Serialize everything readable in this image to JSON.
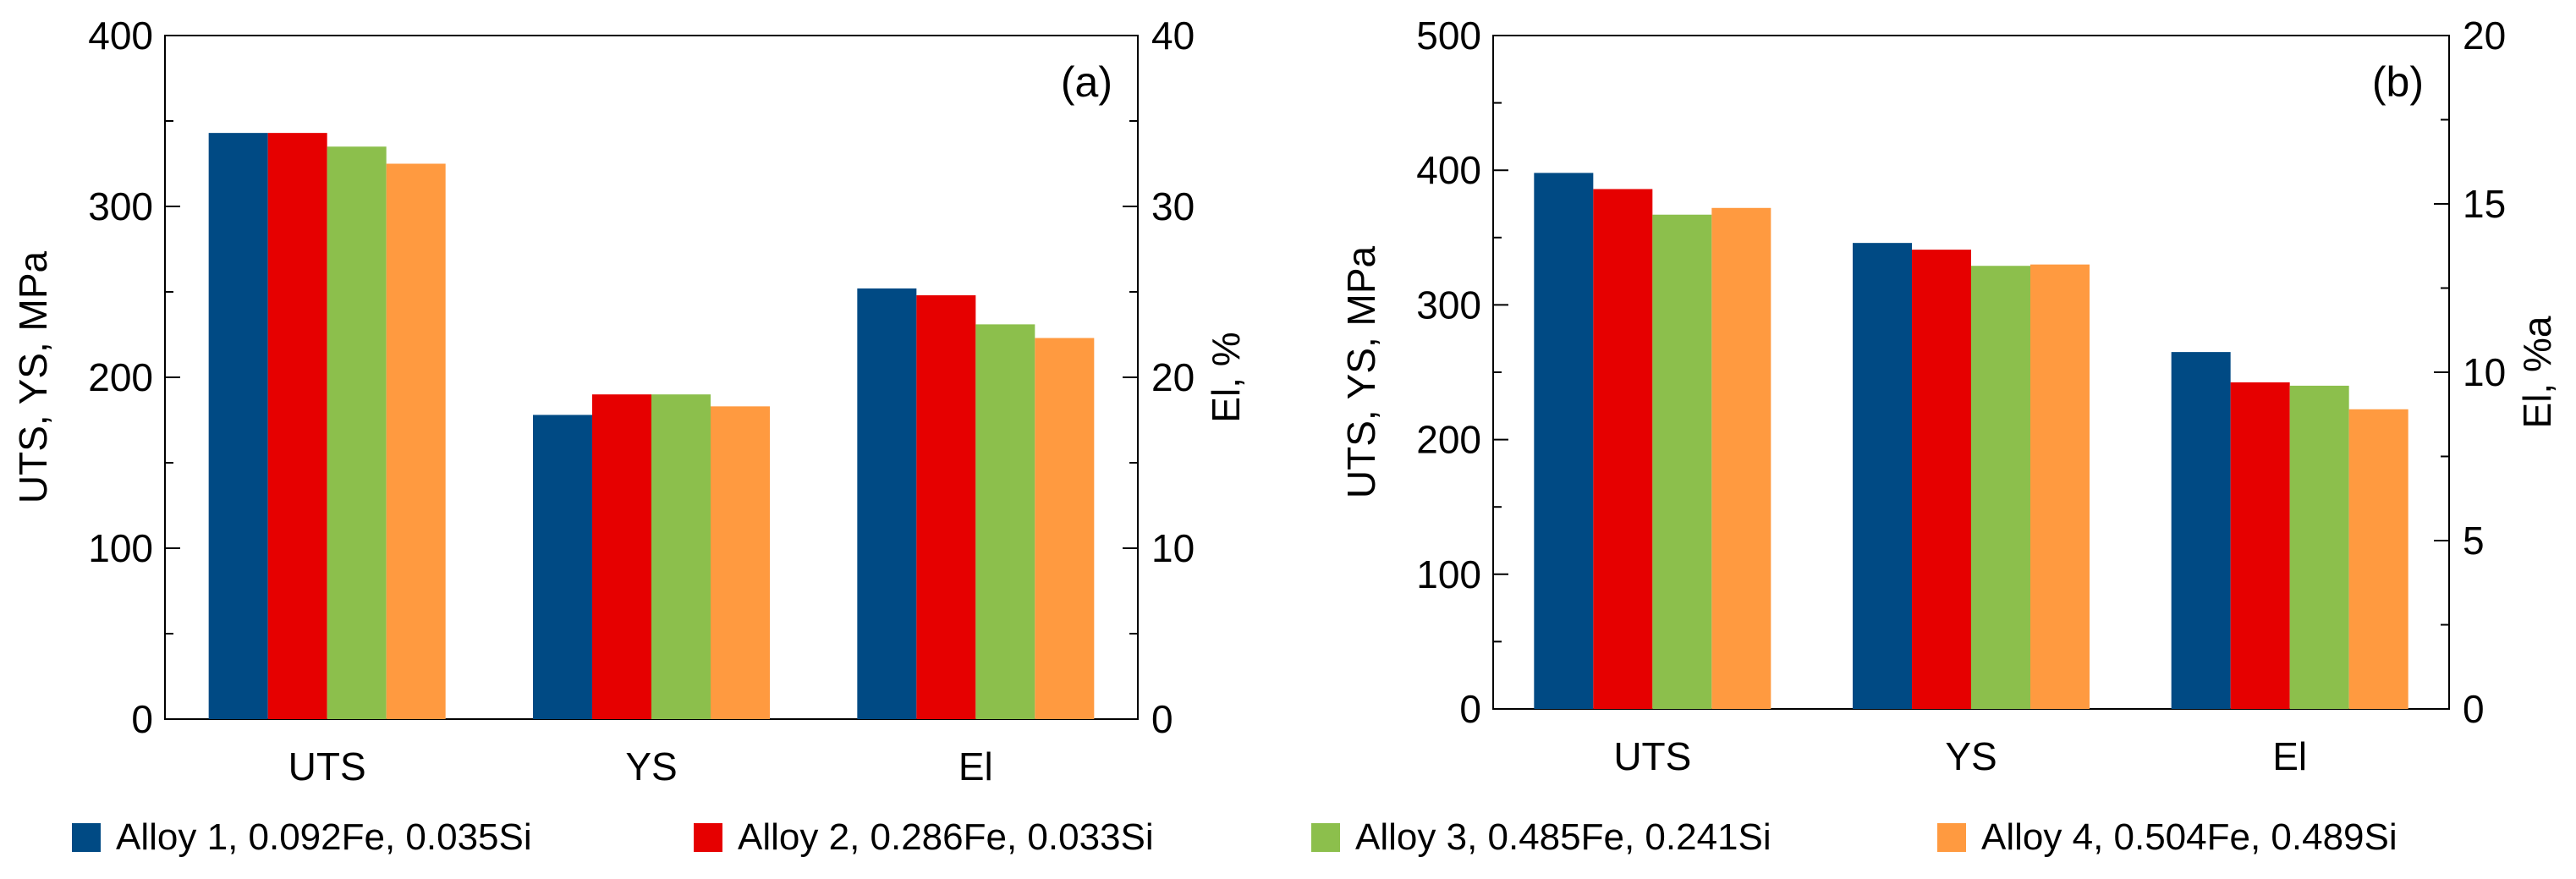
{
  "colors": [
    "#004a84",
    "#e60000",
    "#8cbf4c",
    "#ff9a40"
  ],
  "legend": [
    "Alloy 1, 0.092Fe, 0.035Si",
    "Alloy 2, 0.286Fe, 0.033Si",
    "Alloy 3, 0.485Fe, 0.241Si",
    "Alloy 4, 0.504Fe, 0.489Si"
  ],
  "chart_data": [
    {
      "type": "bar",
      "panel_label": "(a)",
      "categories": [
        "UTS",
        "YS",
        "El"
      ],
      "series": [
        {
          "name": "Alloy 1, 0.092Fe, 0.035Si",
          "values": [
            343,
            178,
            25.2
          ]
        },
        {
          "name": "Alloy 2, 0.286Fe, 0.033Si",
          "values": [
            343,
            190,
            24.8
          ]
        },
        {
          "name": "Alloy 3, 0.485Fe, 0.241Si",
          "values": [
            335,
            190,
            23.1
          ]
        },
        {
          "name": "Alloy 4, 0.504Fe, 0.489Si",
          "values": [
            325,
            183,
            22.3
          ]
        }
      ],
      "secondary_axis_category": "El",
      "ylabel_left": "UTS, YS, MPa",
      "ylabel_right": "El, %",
      "ylim_left": [
        0,
        400
      ],
      "ylim_right": [
        0,
        40
      ],
      "yticks_left": [
        "0",
        "100",
        "200",
        "300",
        "400"
      ],
      "yticks_right": [
        "0",
        "10",
        "20",
        "30",
        "40"
      ],
      "grid": false
    },
    {
      "type": "bar",
      "panel_label": "(b)",
      "categories": [
        "UTS",
        "YS",
        "El"
      ],
      "series": [
        {
          "name": "Alloy 1, 0.092Fe, 0.035Si",
          "values": [
            398,
            346,
            10.6
          ]
        },
        {
          "name": "Alloy 2, 0.286Fe, 0.033Si",
          "values": [
            386,
            341,
            9.7
          ]
        },
        {
          "name": "Alloy 3, 0.485Fe, 0.241Si",
          "values": [
            367,
            329,
            9.6
          ]
        },
        {
          "name": "Alloy 4, 0.504Fe, 0.489Si",
          "values": [
            372,
            330,
            8.9
          ]
        }
      ],
      "secondary_axis_category": "El",
      "ylabel_left": "UTS, YS, MPa",
      "ylabel_right": "El, %a",
      "ylim_left": [
        0,
        500
      ],
      "ylim_right": [
        0,
        20
      ],
      "yticks_left": [
        "0",
        "100",
        "200",
        "300",
        "400",
        "500"
      ],
      "yticks_right": [
        "0",
        "5",
        "10",
        "15",
        "20"
      ],
      "grid": false
    }
  ]
}
